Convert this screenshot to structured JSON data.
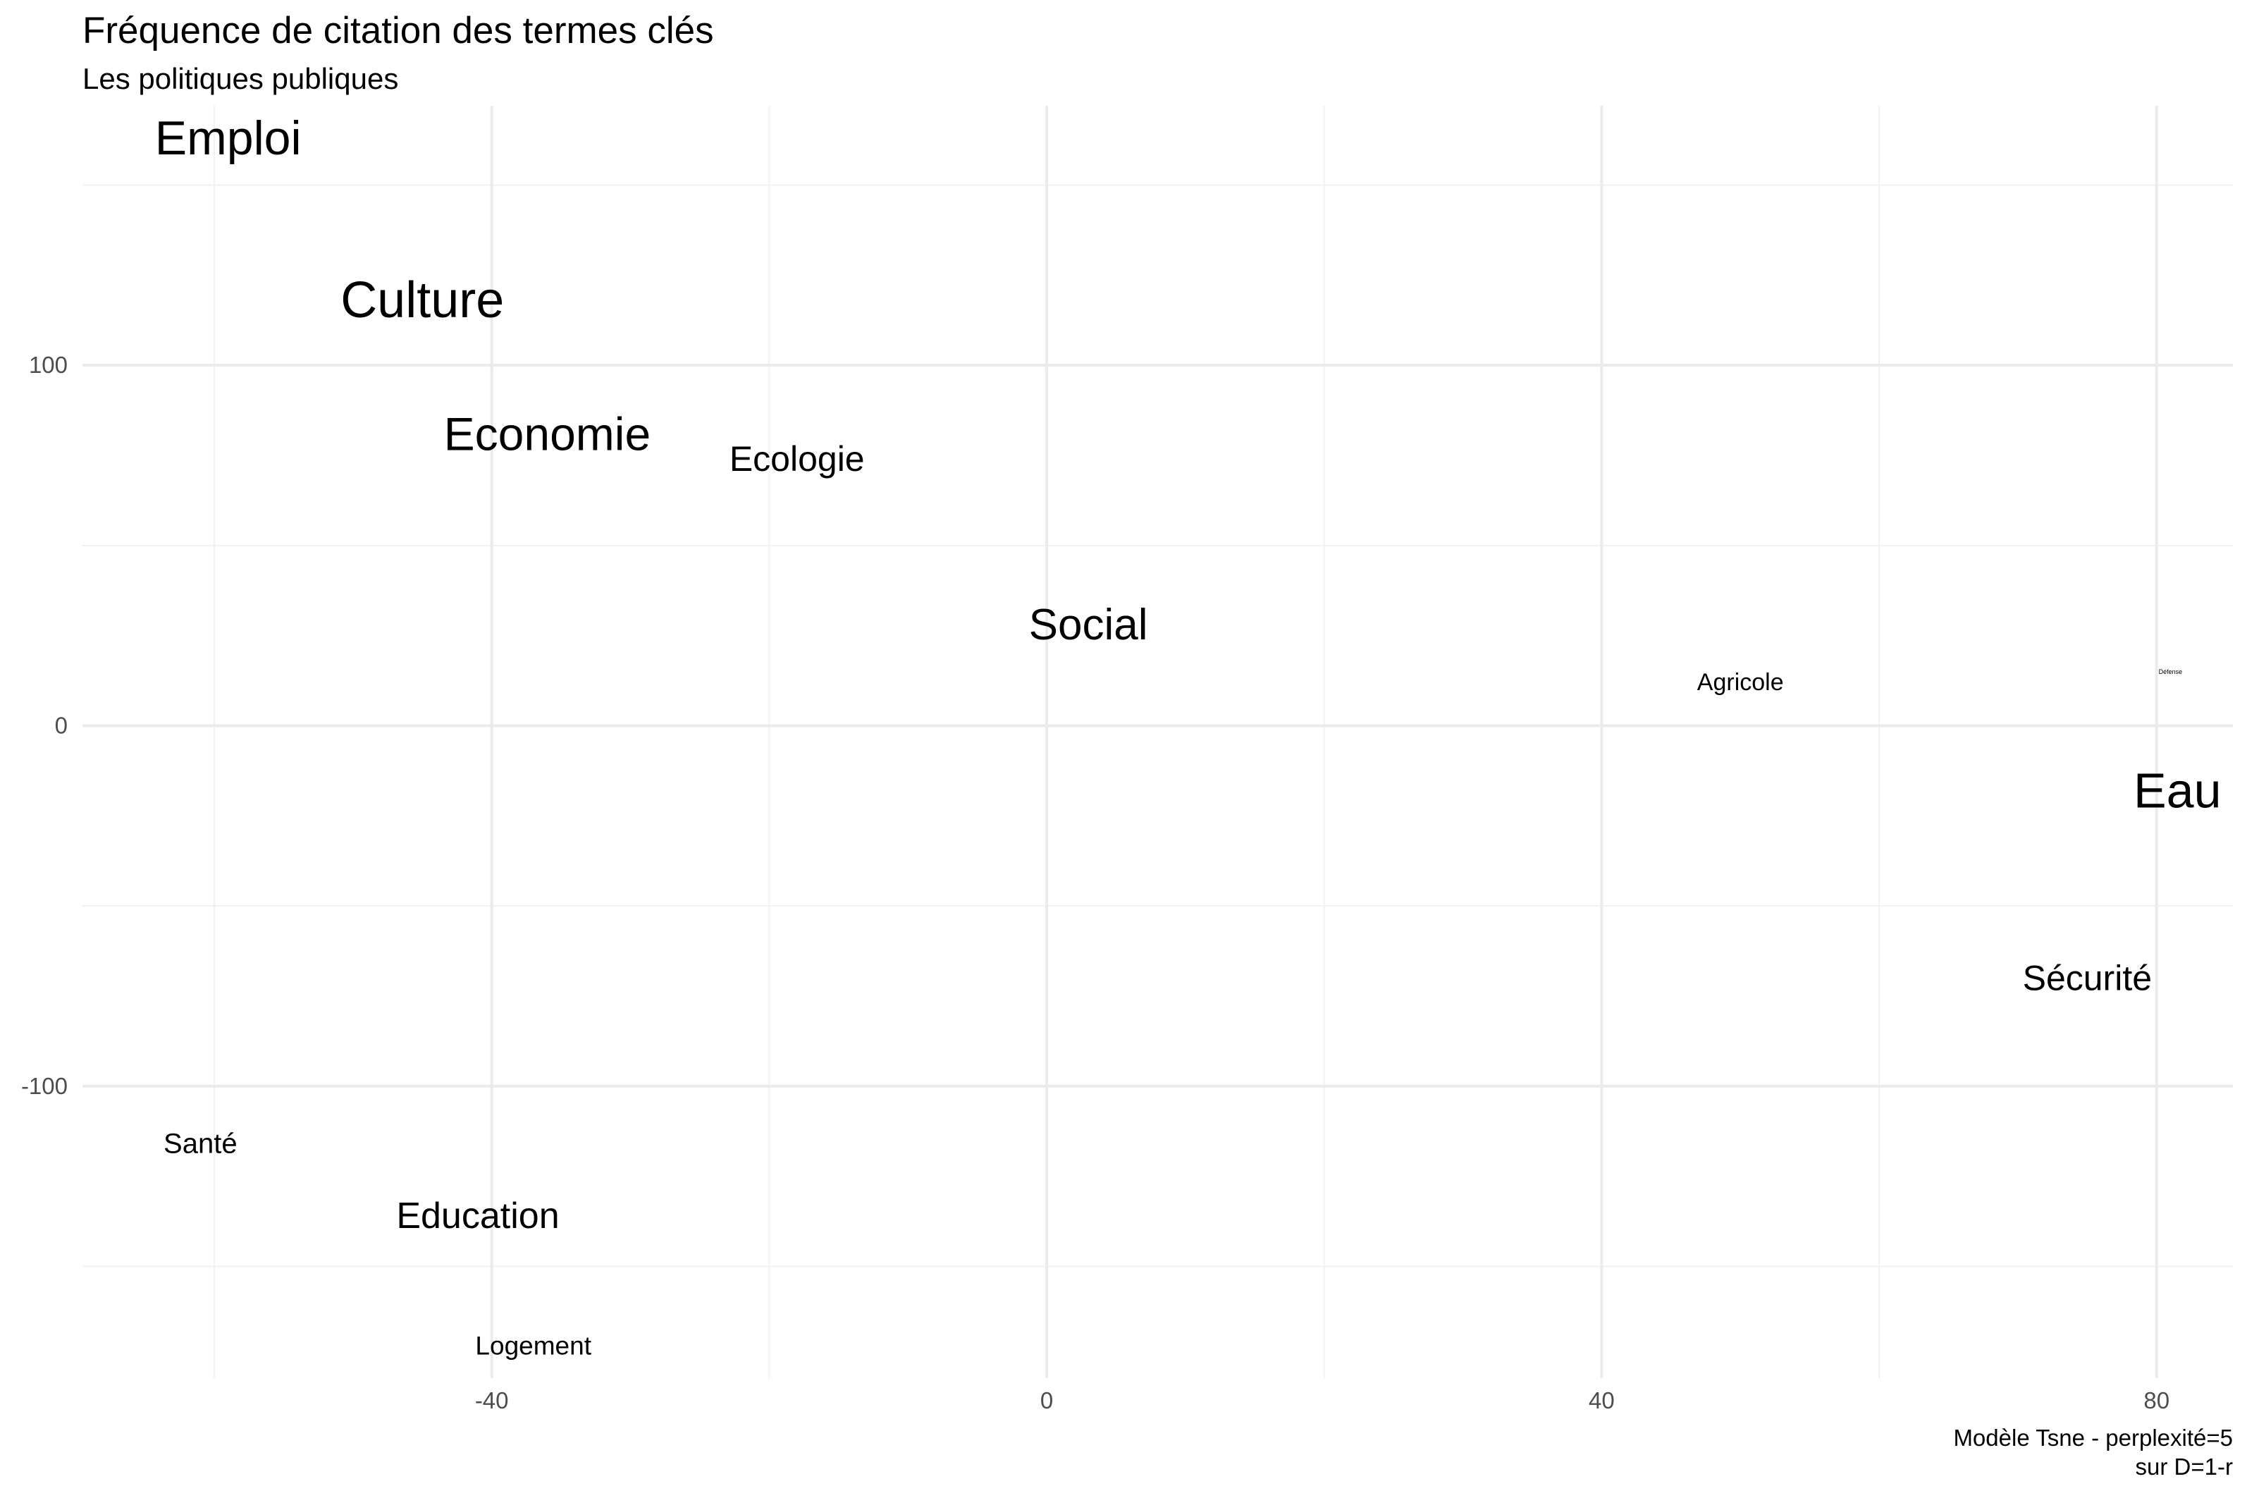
{
  "chart_data": {
    "type": "scatter",
    "title": "Fréquence de citation des termes clés",
    "subtitle": "Les politiques publiques",
    "xlabel": "",
    "ylabel": "",
    "xlim": [
      -69.5,
      85.5
    ],
    "ylim": [
      -181,
      172
    ],
    "x_ticks": [
      -40,
      0,
      40,
      80
    ],
    "y_ticks": [
      -100,
      0,
      100
    ],
    "x_minor": [
      -60,
      -20,
      20,
      60
    ],
    "y_minor": [
      -150,
      -50,
      50,
      150
    ],
    "grid": true,
    "legend": "none",
    "caption": [
      "Modèle Tsne - perplexité=5",
      "sur D=1-r"
    ],
    "points": [
      {
        "label": "Emploi",
        "x": -59,
        "y": 163,
        "size": 68
      },
      {
        "label": "Culture",
        "x": -45,
        "y": 118,
        "size": 72
      },
      {
        "label": "Economie",
        "x": -36,
        "y": 81,
        "size": 66
      },
      {
        "label": "Ecologie",
        "x": -18,
        "y": 74,
        "size": 50
      },
      {
        "label": "Social",
        "x": 3,
        "y": 28,
        "size": 62
      },
      {
        "label": "Agricole",
        "x": 50,
        "y": 12,
        "size": 34
      },
      {
        "label": "Défense",
        "x": 81,
        "y": 15,
        "size": 9
      },
      {
        "label": "Eau",
        "x": 81.5,
        "y": -18,
        "size": 70
      },
      {
        "label": "Sécurité",
        "x": 75,
        "y": -70,
        "size": 50
      },
      {
        "label": "Santé",
        "x": -61,
        "y": -116,
        "size": 40
      },
      {
        "label": "Education",
        "x": -41,
        "y": -136,
        "size": 52
      },
      {
        "label": "Logement",
        "x": -37,
        "y": -172,
        "size": 37
      }
    ]
  }
}
